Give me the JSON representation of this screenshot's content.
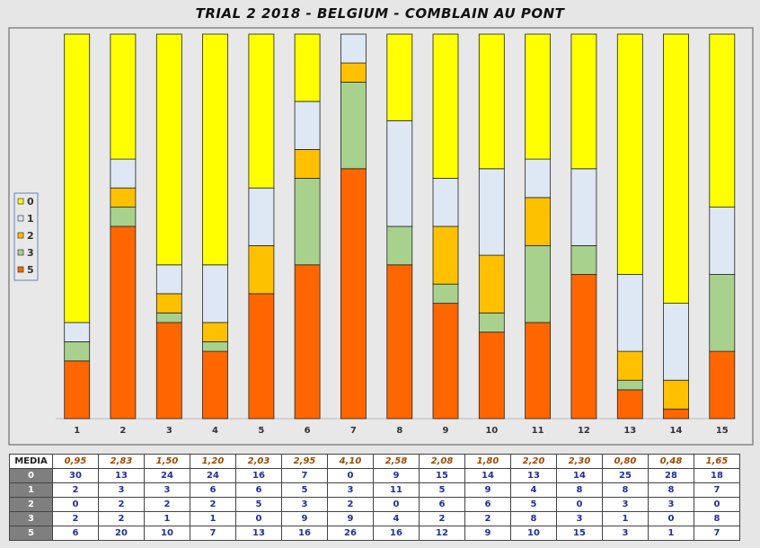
{
  "title": "TRIAL 2 2018 - BELGIUM - COMBLAIN AU PONT",
  "chart_data": {
    "type": "bar",
    "stacked": true,
    "normalized": true,
    "categories": [
      "1",
      "2",
      "3",
      "4",
      "5",
      "6",
      "7",
      "8",
      "9",
      "10",
      "11",
      "12",
      "13",
      "14",
      "15"
    ],
    "series": [
      {
        "name": "5",
        "color": "#ff6600",
        "values": [
          6,
          20,
          10,
          7,
          13,
          16,
          26,
          16,
          12,
          9,
          10,
          15,
          3,
          1,
          7
        ]
      },
      {
        "name": "3",
        "color": "#a9d18e",
        "values": [
          2,
          2,
          1,
          1,
          0,
          9,
          9,
          4,
          2,
          2,
          8,
          3,
          1,
          0,
          8
        ]
      },
      {
        "name": "2",
        "color": "#ffc000",
        "values": [
          0,
          2,
          2,
          2,
          5,
          3,
          2,
          0,
          6,
          6,
          5,
          0,
          3,
          3,
          0
        ]
      },
      {
        "name": "1",
        "color": "#dde8f4",
        "values": [
          2,
          3,
          3,
          6,
          6,
          5,
          3,
          11,
          5,
          9,
          4,
          8,
          8,
          8,
          7
        ]
      },
      {
        "name": "0",
        "color": "#ffff00",
        "values": [
          30,
          13,
          24,
          24,
          16,
          7,
          0,
          9,
          15,
          14,
          13,
          14,
          25,
          28,
          18
        ]
      }
    ],
    "legend_order": [
      "0",
      "1",
      "2",
      "3",
      "5"
    ],
    "legend_position": "left",
    "media": [
      "0,95",
      "2,83",
      "1,50",
      "1,20",
      "2,03",
      "2,95",
      "4,10",
      "2,58",
      "2,08",
      "1,80",
      "2,20",
      "2,30",
      "0,80",
      "0,48",
      "1,65"
    ]
  },
  "table": {
    "media_label": "MEDIA",
    "row_labels": [
      "0",
      "1",
      "2",
      "3",
      "5"
    ]
  }
}
